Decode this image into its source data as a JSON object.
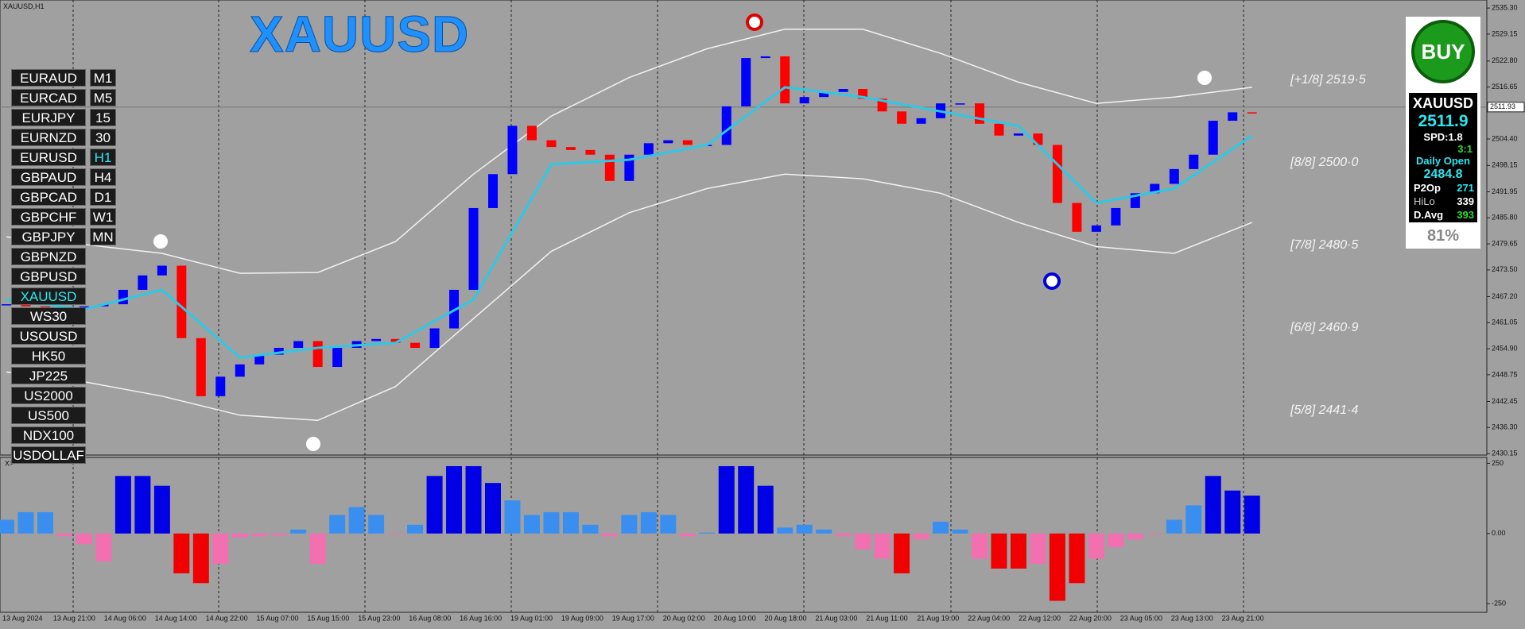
{
  "window_title": "XAUUSD,H1",
  "symbol_title": "XAUUSD",
  "symbols": [
    "EURAUD",
    "EURCAD",
    "EURJPY",
    "EURNZD",
    "EURUSD",
    "GBPAUD",
    "GBPCAD",
    "GBPCHF",
    "GBPJPY",
    "GBPNZD",
    "GBPUSD",
    "XAUUSD",
    "WS30",
    "USOUSD",
    "HK50",
    "JP225",
    "US2000",
    "US500",
    "NDX100",
    "USDOLLAF"
  ],
  "active_symbol": 11,
  "timeframes": [
    "M1",
    "M5",
    "15",
    "30",
    "H1",
    "H4",
    "D1",
    "W1",
    "MN"
  ],
  "active_timeframe": 4,
  "murrey_levels": [
    "[+1/8] 2519·5",
    "[8/8] 2500·0",
    "[7/8] 2480·5",
    "[6/8] 2460·9",
    "[5/8] 2441·4"
  ],
  "info_panel": {
    "signal": "BUY",
    "symbol": "XAUUSD",
    "price": "2511.9",
    "spread": "SPD:1.8",
    "ratio": "3:1",
    "daily_open_label": "Daily Open",
    "daily_open": "2484.8",
    "rows": [
      [
        "P2Op",
        "271"
      ],
      [
        "HiLo",
        "339"
      ],
      [
        "D.Avg",
        "393"
      ]
    ],
    "percent": "81%"
  },
  "price": {
    "ylim": [
      2429.8,
      2537.2
    ],
    "yticks": [
      {
        "value": 2535.3,
        "label": "2535.30"
      },
      {
        "value": 2529.15,
        "label": "2529.15"
      },
      {
        "value": 2522.8,
        "label": "2522.80"
      },
      {
        "value": 2516.65,
        "label": "2516.65"
      },
      {
        "value": 2504.4,
        "label": "2504.40"
      },
      {
        "value": 2498.15,
        "label": "2498.15"
      },
      {
        "value": 2491.95,
        "label": "2491.95"
      },
      {
        "value": 2485.8,
        "label": "2485.80"
      },
      {
        "value": 2479.65,
        "label": "2479.65"
      },
      {
        "value": 2473.5,
        "label": "2473.50"
      },
      {
        "value": 2467.2,
        "label": "2467.20"
      },
      {
        "value": 2461.05,
        "label": "2461.05"
      },
      {
        "value": 2454.9,
        "label": "2454.90"
      },
      {
        "value": 2448.75,
        "label": "2448.75"
      },
      {
        "value": 2442.45,
        "label": "2442.45"
      },
      {
        "value": 2436.3,
        "label": "2436.30"
      },
      {
        "value": 2430.15,
        "label": "2430.15"
      }
    ],
    "current": {
      "value": 2511.93,
      "label": "2511.93"
    },
    "close": [
      2465.4,
      2464.9,
      2464.5,
      2464.5,
      2464.9,
      2465.4,
      2468.8,
      2472.2,
      2474.5,
      2457.4,
      2443.7,
      2448.3,
      2451.2,
      2453.5,
      2455.1,
      2456.7,
      2450.6,
      2455.1,
      2456.7,
      2457.2,
      2456.3,
      2455.1,
      2459.7,
      2468.8,
      2488.1,
      2496.1,
      2507.5,
      2504.1,
      2502.5,
      2501.8,
      2500.7,
      2494.5,
      2500.7,
      2503.4,
      2504.1,
      2503.0,
      2503.0,
      2512.1,
      2523.5,
      2523.9,
      2512.8,
      2514.3,
      2515.5,
      2516.2,
      2513.9,
      2510.9,
      2508.0,
      2509.3,
      2512.8,
      2512.8,
      2508.0,
      2505.2,
      2505.7,
      2503.0,
      2489.3,
      2482.5,
      2484.0,
      2488.1,
      2491.6,
      2493.8,
      2497.3,
      2500.7,
      2508.7,
      2510.7,
      2510.5
    ],
    "upper_band": [
      2481.3,
      2479.5,
      2477.4,
      2472.7,
      2472.9,
      2480.2,
      2496.1,
      2509.8,
      2518.9,
      2525.7,
      2530.3,
      2530.3,
      2524.6,
      2517.8,
      2512.8,
      2514.3,
      2516.6
    ],
    "lower_band": [
      2449.4,
      2447.1,
      2443.7,
      2439.2,
      2438.0,
      2446.0,
      2462.0,
      2477.9,
      2487.0,
      2492.7,
      2496.1,
      2495.0,
      2491.6,
      2484.7,
      2479.0,
      2477.4,
      2484.7
    ],
    "ma": [
      2466.5,
      2464.2,
      2468.8,
      2452.8,
      2455.1,
      2456.3,
      2466.5,
      2498.4,
      2499.5,
      2503.0,
      2516.6,
      2514.3,
      2510.9,
      2507.5,
      2489.3,
      2492.7,
      2505.2
    ]
  },
  "oscillator": {
    "label": "X>",
    "ylim": [
      -281,
      271
    ],
    "yticks": [
      250,
      {
        "value": 0,
        "label": "0.00"
      },
      -250
    ],
    "values": [
      49,
      76,
      76,
      -10,
      -38,
      -100,
      205,
      205,
      170,
      -142,
      -177,
      -108,
      -14,
      -10,
      -7,
      14,
      -108,
      66,
      94,
      66,
      -3,
      31,
      205,
      240,
      240,
      180,
      118,
      66,
      76,
      76,
      31,
      -10,
      66,
      76,
      66,
      -10,
      3,
      240,
      240,
      170,
      21,
      31,
      14,
      -10,
      -56,
      -90,
      -142,
      -21,
      42,
      14,
      -90,
      -125,
      -125,
      -108,
      -240,
      -177,
      -90,
      -49,
      -21,
      -3,
      49,
      100,
      205,
      153,
      135
    ]
  },
  "time_axis": [
    "13 Aug 2024",
    "13 Aug 21:00",
    "14 Aug 06:00",
    "14 Aug 14:00",
    "14 Aug 22:00",
    "15 Aug 07:00",
    "15 Aug 15:00",
    "15 Aug 23:00",
    "16 Aug 08:00",
    "16 Aug 16:00",
    "19 Aug 01:00",
    "19 Aug 09:00",
    "19 Aug 17:00",
    "20 Aug 02:00",
    "20 Aug 10:00",
    "20 Aug 18:00",
    "21 Aug 03:00",
    "21 Aug 11:00",
    "21 Aug 19:00",
    "22 Aug 04:00",
    "22 Aug 12:00",
    "22 Aug 20:00",
    "23 Aug 05:00",
    "23 Aug 13:00",
    "23 Aug 21:00"
  ]
}
